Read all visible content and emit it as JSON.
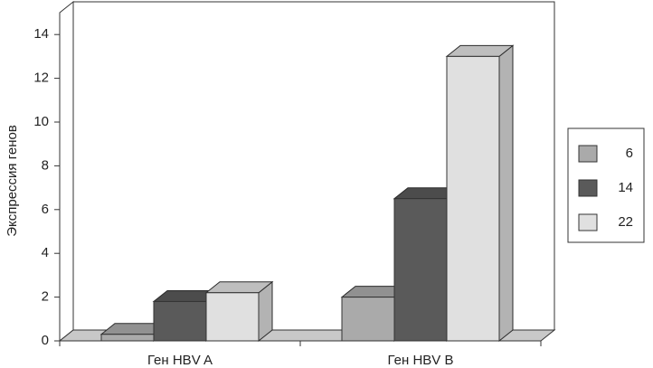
{
  "chart_data": {
    "type": "bar3d",
    "y_label": "Экспрессия генов",
    "categories": [
      "Ген HBV A",
      "Ген HBV B"
    ],
    "series": [
      {
        "name": "6",
        "color": "#aaaaaa",
        "values": [
          0.3,
          2.0
        ]
      },
      {
        "name": "14",
        "color": "#5a5a5a",
        "values": [
          1.8,
          6.5
        ]
      },
      {
        "name": "22",
        "color": "#e0e0e0",
        "values": [
          2.2,
          13.0
        ]
      }
    ],
    "ylim": [
      0,
      15
    ],
    "yticks": [
      0,
      2,
      4,
      6,
      8,
      10,
      12,
      14
    ]
  }
}
